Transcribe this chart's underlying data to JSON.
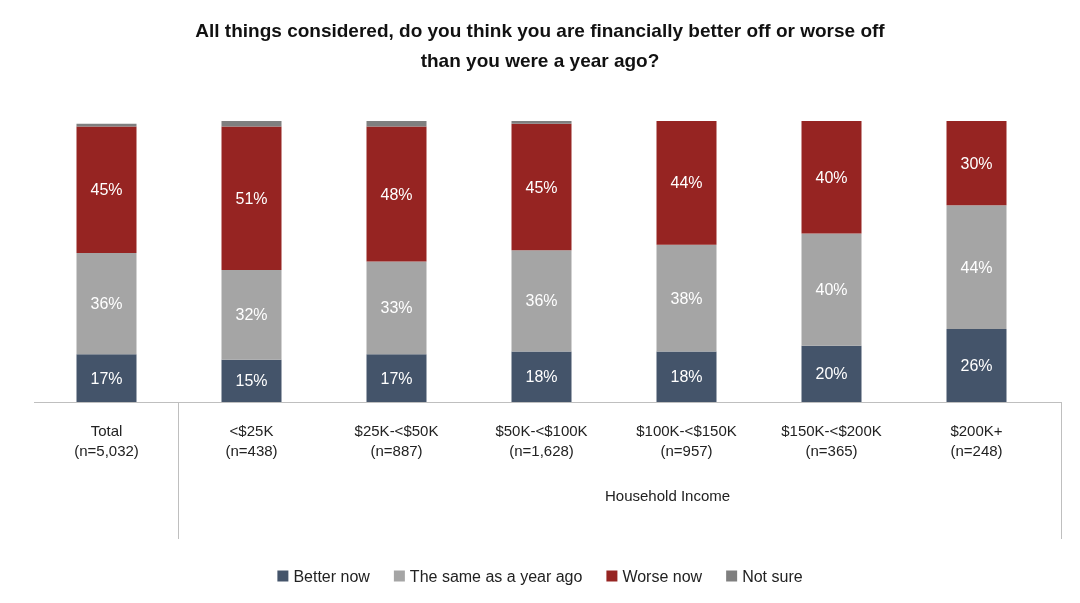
{
  "chart_data": {
    "type": "bar",
    "title": "All things considered, do you think you are financially better off or worse off\nthan you were a year ago?",
    "stacked": true,
    "categories": [
      "Total\n(n=5,032)",
      "<$25K\n(n=438)",
      "$25K-<$50K\n(n=887)",
      "$50K-<$100K\n(n=1,628)",
      "$100K-<$150K\n(n=957)",
      "$150K-<$200K\n(n=365)",
      "$200K+\n(n=248)"
    ],
    "series": [
      {
        "name": "Better now",
        "color": "#44546a",
        "values": [
          17,
          15,
          17,
          18,
          18,
          20,
          26
        ],
        "value_labels": [
          "17%",
          "15%",
          "17%",
          "18%",
          "18%",
          "20%",
          "26%"
        ]
      },
      {
        "name": "The same as a year ago",
        "color": "#a5a5a5",
        "values": [
          36,
          32,
          33,
          36,
          38,
          40,
          44
        ],
        "value_labels": [
          "36%",
          "32%",
          "33%",
          "36%",
          "38%",
          "40%",
          "44%"
        ]
      },
      {
        "name": "Worse now",
        "color": "#962422",
        "values": [
          45,
          51,
          48,
          45,
          44,
          40,
          30
        ],
        "value_labels": [
          "45%",
          "51%",
          "48%",
          "45%",
          "44%",
          "40%",
          "30%"
        ]
      },
      {
        "name": "Not sure",
        "color": "#7f7f7f",
        "values": [
          1,
          2,
          2,
          1,
          0,
          0,
          0
        ]
      }
    ],
    "ylim": [
      0,
      100
    ],
    "tick_labels": "x",
    "legend": "bottom",
    "annotations": [
      "Household Income"
    ]
  }
}
